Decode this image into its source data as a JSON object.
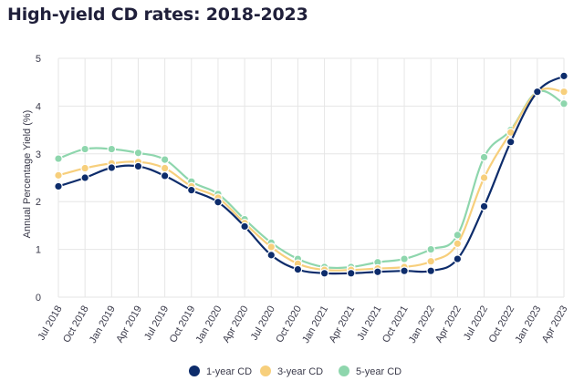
{
  "chart_data": {
    "type": "line",
    "title": "High-yield CD rates: 2018-2023",
    "ylabel": "Annual Percentage Yield (%)",
    "xlabel": "",
    "ylim": [
      0,
      5
    ],
    "yticks": [
      "0",
      "1",
      "2",
      "3",
      "4",
      "5"
    ],
    "grid": "vertical and horizontal",
    "legend_position": "bottom",
    "categories": [
      "Jul 2018",
      "Oct 2018",
      "Jan 2019",
      "Apr 2019",
      "Jul 2019",
      "Oct 2019",
      "Jan 2020",
      "Apr 2020",
      "Jul 2020",
      "Oct 2020",
      "Jan 2021",
      "Apr 2021",
      "Jul 2021",
      "Oct 2021",
      "Jan 2022",
      "Apr 2022",
      "Jul 2022",
      "Oct 2022",
      "Jan 2023",
      "Apr 2023"
    ],
    "series": [
      {
        "name": "1-year CD",
        "color": "#0d2c6b",
        "values": [
          2.32,
          2.5,
          2.71,
          2.74,
          2.54,
          2.24,
          1.99,
          1.48,
          0.88,
          0.58,
          0.5,
          0.5,
          0.53,
          0.55,
          0.55,
          0.8,
          1.9,
          3.25,
          4.3,
          4.63
        ]
      },
      {
        "name": "3-year CD",
        "color": "#f7cf7c",
        "values": [
          2.55,
          2.7,
          2.8,
          2.83,
          2.7,
          2.32,
          2.08,
          1.55,
          1.05,
          0.7,
          0.57,
          0.57,
          0.6,
          0.63,
          0.75,
          1.12,
          2.5,
          3.45,
          4.3,
          4.3
        ]
      },
      {
        "name": "5-year CD",
        "color": "#8ed6ad",
        "values": [
          2.9,
          3.1,
          3.1,
          3.02,
          2.88,
          2.42,
          2.16,
          1.63,
          1.14,
          0.8,
          0.63,
          0.63,
          0.73,
          0.8,
          1.0,
          1.3,
          2.93,
          3.5,
          4.3,
          4.05
        ]
      }
    ]
  }
}
